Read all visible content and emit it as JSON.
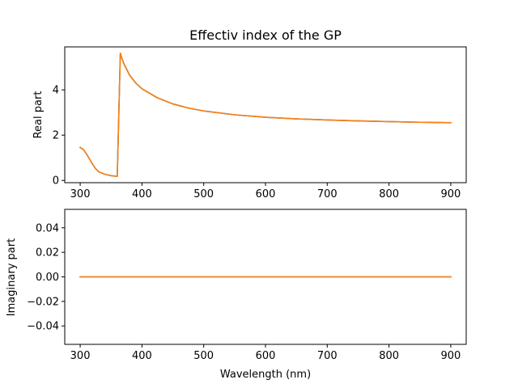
{
  "chart_data": [
    {
      "type": "line",
      "title": "Effectiv index of the GP",
      "xlabel": "",
      "ylabel": "Real part",
      "xlim": [
        275,
        925
      ],
      "ylim": [
        -0.1,
        5.9
      ],
      "xticks": [
        300,
        400,
        500,
        600,
        700,
        800,
        900
      ],
      "yticks": [
        0,
        2,
        4
      ],
      "grid": false,
      "series": [
        {
          "color": "#1f77b4",
          "x": [
            300,
            305,
            310,
            315,
            320,
            325,
            330,
            340,
            350,
            360,
            365,
            370,
            380,
            390,
            400,
            425,
            450,
            475,
            500,
            550,
            600,
            650,
            700,
            750,
            800,
            850,
            900
          ],
          "values": [
            1.45,
            1.37,
            1.18,
            0.95,
            0.72,
            0.52,
            0.38,
            0.27,
            0.21,
            0.18,
            5.62,
            5.2,
            4.65,
            4.3,
            4.05,
            3.65,
            3.38,
            3.2,
            3.07,
            2.9,
            2.79,
            2.72,
            2.67,
            2.63,
            2.6,
            2.57,
            2.55
          ]
        },
        {
          "color": "#ff7f0e",
          "x": [
            300,
            305,
            310,
            315,
            320,
            325,
            330,
            340,
            350,
            360,
            365,
            370,
            380,
            390,
            400,
            425,
            450,
            475,
            500,
            550,
            600,
            650,
            700,
            750,
            800,
            850,
            900
          ],
          "values": [
            1.45,
            1.37,
            1.18,
            0.95,
            0.72,
            0.52,
            0.38,
            0.27,
            0.21,
            0.18,
            5.62,
            5.2,
            4.65,
            4.3,
            4.05,
            3.65,
            3.38,
            3.2,
            3.07,
            2.9,
            2.79,
            2.72,
            2.67,
            2.63,
            2.6,
            2.57,
            2.55
          ]
        }
      ]
    },
    {
      "type": "line",
      "title": "",
      "xlabel": "Wavelength (nm)",
      "ylabel": "Imaginary part",
      "xlim": [
        275,
        925
      ],
      "ylim": [
        -0.055,
        0.055
      ],
      "xticks": [
        300,
        400,
        500,
        600,
        700,
        800,
        900
      ],
      "yticks": [
        -0.04,
        -0.02,
        0.0,
        0.02,
        0.04
      ],
      "ytick_labels": [
        "−0.04",
        "−0.02",
        "0.00",
        "0.02",
        "0.04"
      ],
      "grid": false,
      "series": [
        {
          "color": "#1f77b4",
          "x": [
            300,
            900
          ],
          "values": [
            0,
            0
          ]
        },
        {
          "color": "#ff7f0e",
          "x": [
            300,
            900
          ],
          "values": [
            0,
            0
          ]
        }
      ]
    }
  ]
}
